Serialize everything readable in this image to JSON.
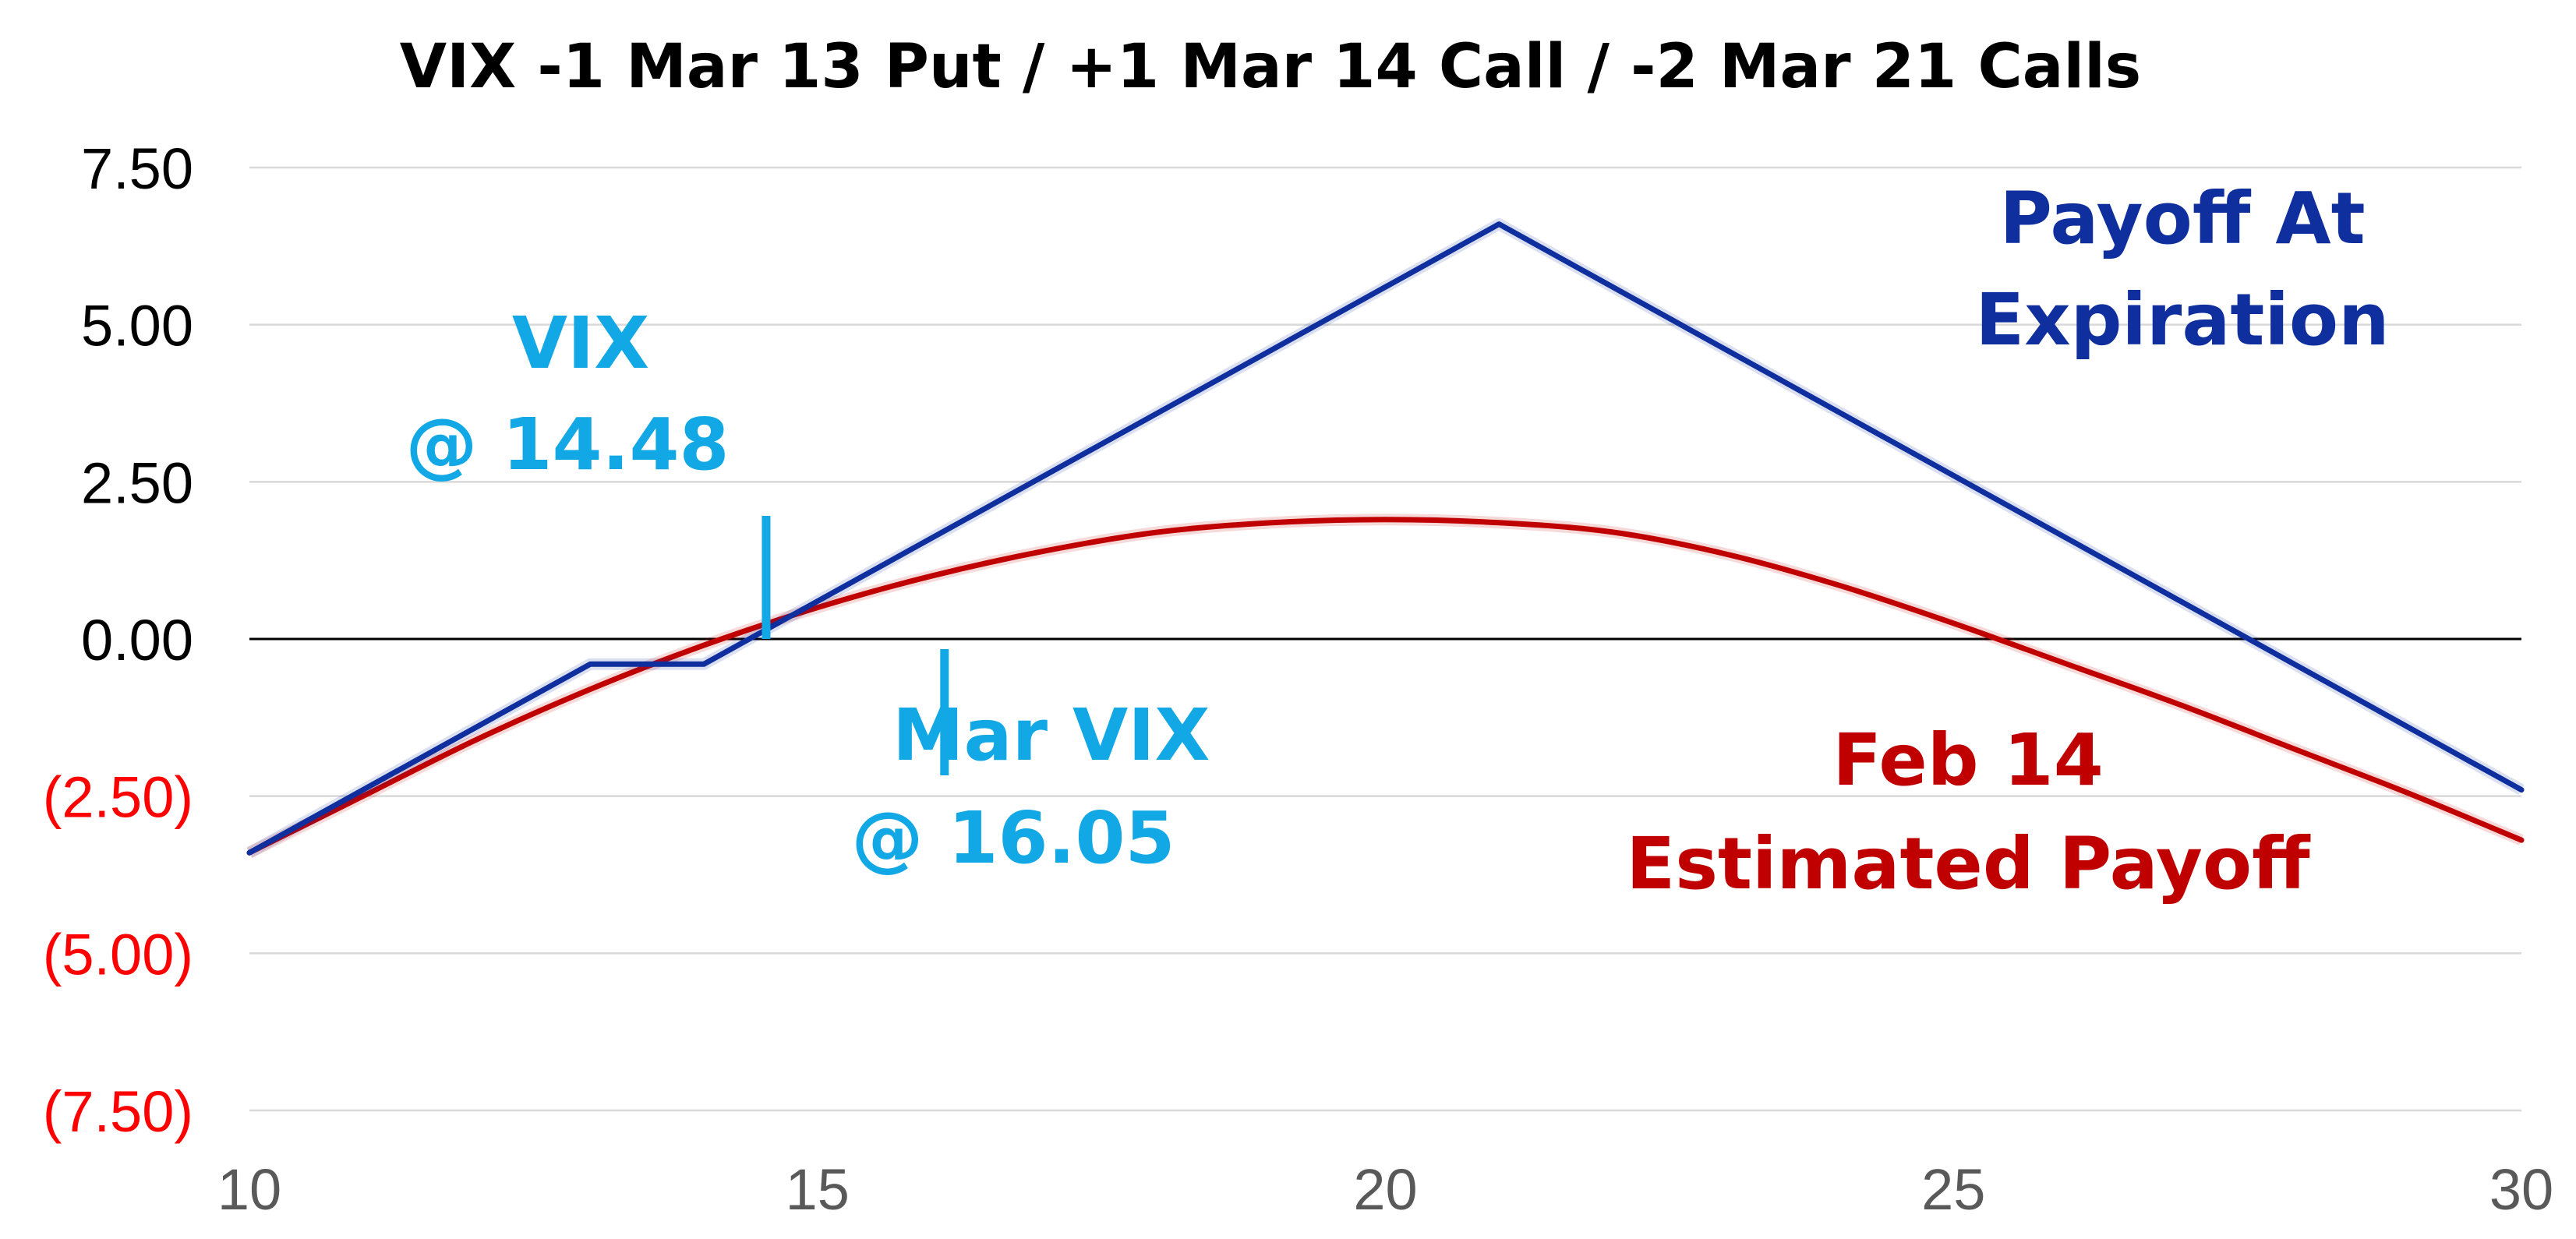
{
  "chart_data": {
    "type": "line",
    "title": "VIX -1 Mar 13 Put / +1 Mar 14 Call / -2 Mar 21 Calls",
    "xlabel": "",
    "ylabel": "",
    "xlim": [
      10,
      30
    ],
    "ylim": [
      -7.5,
      7.5
    ],
    "x_ticks": [
      10,
      15,
      20,
      25,
      30
    ],
    "x_tick_labels": [
      "10",
      "15",
      "20",
      "25",
      "30"
    ],
    "y_ticks": [
      7.5,
      5,
      2.5,
      0,
      -2.5,
      -5,
      -7.5
    ],
    "y_tick_labels": [
      "7.50",
      "5.00",
      "2.50",
      "0.00",
      "(2.50)",
      "(5.00)",
      "(7.50)"
    ],
    "negative_tick_color": "#ff0000",
    "positive_tick_color": "#000000",
    "grid": true,
    "grid_color": "#d9d9d9",
    "zero_line_color": "#000000",
    "series": [
      {
        "key": "expiration",
        "color": "#102f9e",
        "x": [
          10,
          13,
          14,
          21,
          30
        ],
        "y": [
          -3.4,
          -0.4,
          -0.4,
          6.6,
          -2.4
        ]
      },
      {
        "key": "estimated",
        "color": "#c00000",
        "x": [
          10,
          11,
          12,
          13,
          14,
          15,
          16,
          17,
          18,
          19,
          20,
          21,
          22,
          23,
          24,
          25,
          26,
          27,
          28,
          29,
          30
        ],
        "y": [
          -3.4,
          -2.5,
          -1.6,
          -0.8,
          -0.1,
          0.5,
          1.0,
          1.4,
          1.7,
          1.85,
          1.9,
          1.85,
          1.7,
          1.35,
          0.85,
          0.25,
          -0.4,
          -1.05,
          -1.75,
          -2.45,
          -3.2
        ]
      }
    ],
    "annotations": {
      "vix_line1": "VIX",
      "vix_line2": "@ 14.48",
      "vix_value": 14.48,
      "mar_vix_line1": "Mar VIX",
      "mar_vix_line2": "@ 16.05",
      "mar_vix_value": 16.05,
      "marker_color": "#12a8e6",
      "expiration_line1": "Payoff At",
      "expiration_line2": "Expiration",
      "estimated_line1": "Feb 14",
      "estimated_line2": "Estimated Payoff"
    }
  }
}
